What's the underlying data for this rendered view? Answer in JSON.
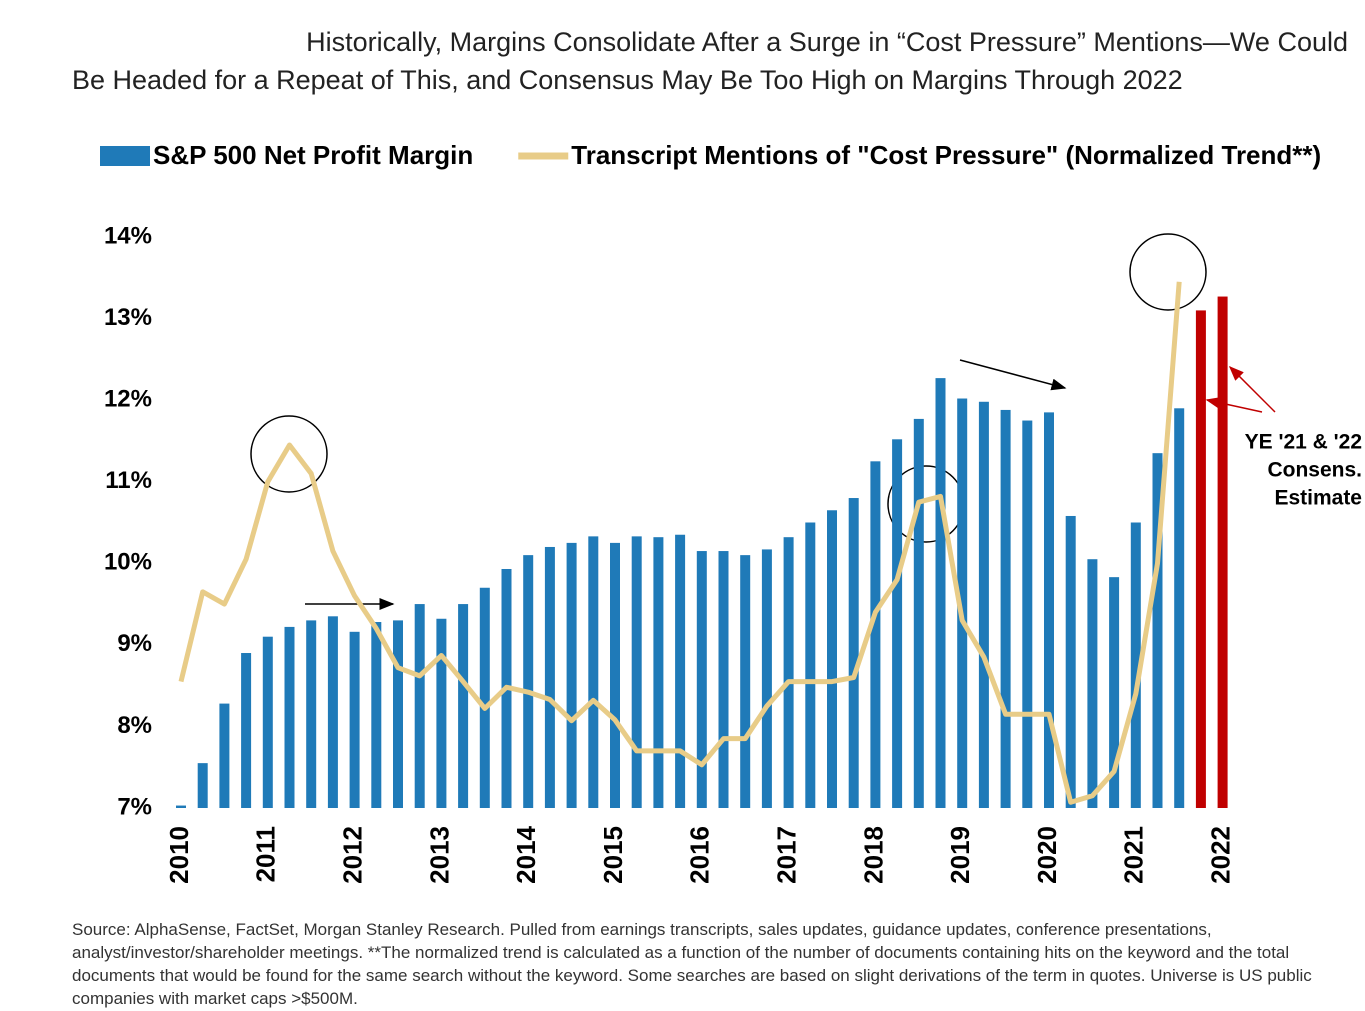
{
  "chart_data": {
    "type": "bar",
    "title_lines": [
      "Historically, Margins Consolidate After a Surge in “Cost Pressure” Mentions—We Could",
      "Be Headed for a Repeat of This, and Consensus May Be Too High on Margins Through 2022"
    ],
    "categories": [
      "2010",
      null,
      null,
      null,
      "2011",
      null,
      null,
      null,
      "2012",
      null,
      null,
      null,
      "2013",
      null,
      null,
      null,
      "2014",
      null,
      null,
      null,
      "2015",
      null,
      null,
      null,
      "2016",
      null,
      null,
      null,
      "2017",
      null,
      null,
      null,
      "2018",
      null,
      null,
      null,
      "2019",
      null,
      null,
      null,
      "2020",
      null,
      null,
      null,
      "2021",
      null,
      null,
      null,
      "2022"
    ],
    "series": [
      {
        "name": "S&P 500 Net Profit Margin",
        "type": "bar",
        "color": "#1f7ab8",
        "colors": [
          "#1f7ab8",
          "#1f7ab8",
          "#1f7ab8",
          "#1f7ab8",
          "#1f7ab8",
          "#1f7ab8",
          "#1f7ab8",
          "#1f7ab8",
          "#1f7ab8",
          "#1f7ab8",
          "#1f7ab8",
          "#1f7ab8",
          "#1f7ab8",
          "#1f7ab8",
          "#1f7ab8",
          "#1f7ab8",
          "#1f7ab8",
          "#1f7ab8",
          "#1f7ab8",
          "#1f7ab8",
          "#1f7ab8",
          "#1f7ab8",
          "#1f7ab8",
          "#1f7ab8",
          "#1f7ab8",
          "#1f7ab8",
          "#1f7ab8",
          "#1f7ab8",
          "#1f7ab8",
          "#1f7ab8",
          "#1f7ab8",
          "#1f7ab8",
          "#1f7ab8",
          "#1f7ab8",
          "#1f7ab8",
          "#1f7ab8",
          "#1f7ab8",
          "#1f7ab8",
          "#1f7ab8",
          "#1f7ab8",
          "#1f7ab8",
          "#1f7ab8",
          "#1f7ab8",
          "#1f7ab8",
          "#1f7ab8",
          "#1f7ab8",
          "#1f7ab8",
          "#c00000",
          "#c00000"
        ],
        "values": [
          7.03,
          7.55,
          8.28,
          8.9,
          9.1,
          9.22,
          9.3,
          9.35,
          9.16,
          9.28,
          9.3,
          9.5,
          9.32,
          9.5,
          9.7,
          9.93,
          10.1,
          10.2,
          10.25,
          10.33,
          10.25,
          10.33,
          10.32,
          10.35,
          10.15,
          10.15,
          10.1,
          10.17,
          10.32,
          10.5,
          10.65,
          10.8,
          11.25,
          11.52,
          11.77,
          12.27,
          12.02,
          11.98,
          11.88,
          11.75,
          11.85,
          10.58,
          10.05,
          9.83,
          10.5,
          11.35,
          11.9,
          13.1,
          13.27
        ]
      },
      {
        "name": "Transcript Mentions of \"Cost Pressure\" (Normalized Trend**)",
        "type": "line",
        "color": "#e8cc88",
        "values": [
          8.55,
          9.65,
          9.5,
          10.05,
          11.0,
          11.45,
          11.1,
          10.15,
          9.6,
          9.2,
          8.72,
          8.62,
          8.87,
          8.55,
          8.22,
          8.48,
          8.42,
          8.33,
          8.07,
          8.32,
          8.08,
          7.7,
          7.7,
          7.7,
          7.53,
          7.85,
          7.85,
          8.25,
          8.55,
          8.55,
          8.55,
          8.6,
          9.4,
          9.8,
          10.75,
          10.82,
          9.3,
          8.85,
          8.15,
          8.15,
          8.15,
          7.07,
          7.15,
          7.45,
          8.4,
          10.0,
          13.45,
          null,
          null
        ]
      }
    ],
    "ylim": [
      7,
      14
    ],
    "yticks": [
      {
        "value": 7,
        "label": "7%"
      },
      {
        "value": 8,
        "label": "8%"
      },
      {
        "value": 9,
        "label": "9%"
      },
      {
        "value": 10,
        "label": "10%"
      },
      {
        "value": 11,
        "label": "11%"
      },
      {
        "value": 12,
        "label": "12%"
      },
      {
        "value": 13,
        "label": "13%"
      },
      {
        "value": 14,
        "label": "14%"
      }
    ],
    "grid": false,
    "legend": "top",
    "annotation_lines": [
      "YE '21 & '22",
      "Consens.",
      "Estimate"
    ],
    "source": "Source: AlphaSense, FactSet, Morgan Stanley Research. Pulled from earnings transcripts, sales updates, guidance updates, conference presentations, analyst/investor/shareholder meetings. **The normalized trend is calculated as a function of the number of documents containing hits on the keyword and the total documents that would be found for the same search without the keyword. Some searches are based on slight derivations of the term in quotes. Universe is US public companies with market caps >$500M."
  }
}
